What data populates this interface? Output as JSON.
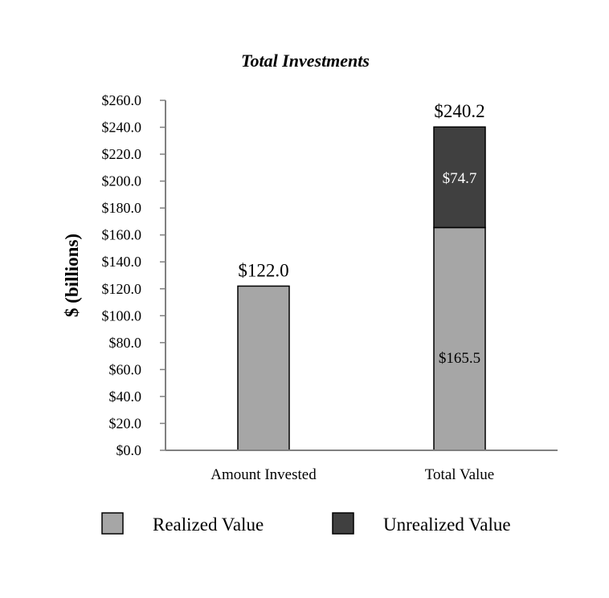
{
  "chart_data": {
    "type": "bar",
    "stacked": true,
    "title": "Total Investments",
    "ylabel": "$ (billions)",
    "xlabel": "",
    "categories": [
      "Amount Invested",
      "Total Value"
    ],
    "series": [
      {
        "name": "Realized Value",
        "color": "#a6a6a6",
        "values": [
          122.0,
          165.5
        ],
        "labels": [
          "",
          "$165.5"
        ]
      },
      {
        "name": "Unrealized Value",
        "color": "#404040",
        "values": [
          0,
          74.7
        ],
        "labels": [
          "",
          "$74.7"
        ]
      }
    ],
    "totals": [
      122.0,
      240.2
    ],
    "total_labels": [
      "$122.0",
      "$240.2"
    ],
    "ylim": [
      0,
      260
    ],
    "ytick_values": [
      0,
      20,
      40,
      60,
      80,
      100,
      120,
      140,
      160,
      180,
      200,
      220,
      240,
      260
    ],
    "ytick_labels": [
      "$0.0",
      "$20.0",
      "$40.0",
      "$60.0",
      "$80.0",
      "$100.0",
      "$120.0",
      "$140.0",
      "$160.0",
      "$180.0",
      "$200.0",
      "$220.0",
      "$240.0",
      "$260.0"
    ],
    "grid": false,
    "legend_position": "bottom"
  }
}
